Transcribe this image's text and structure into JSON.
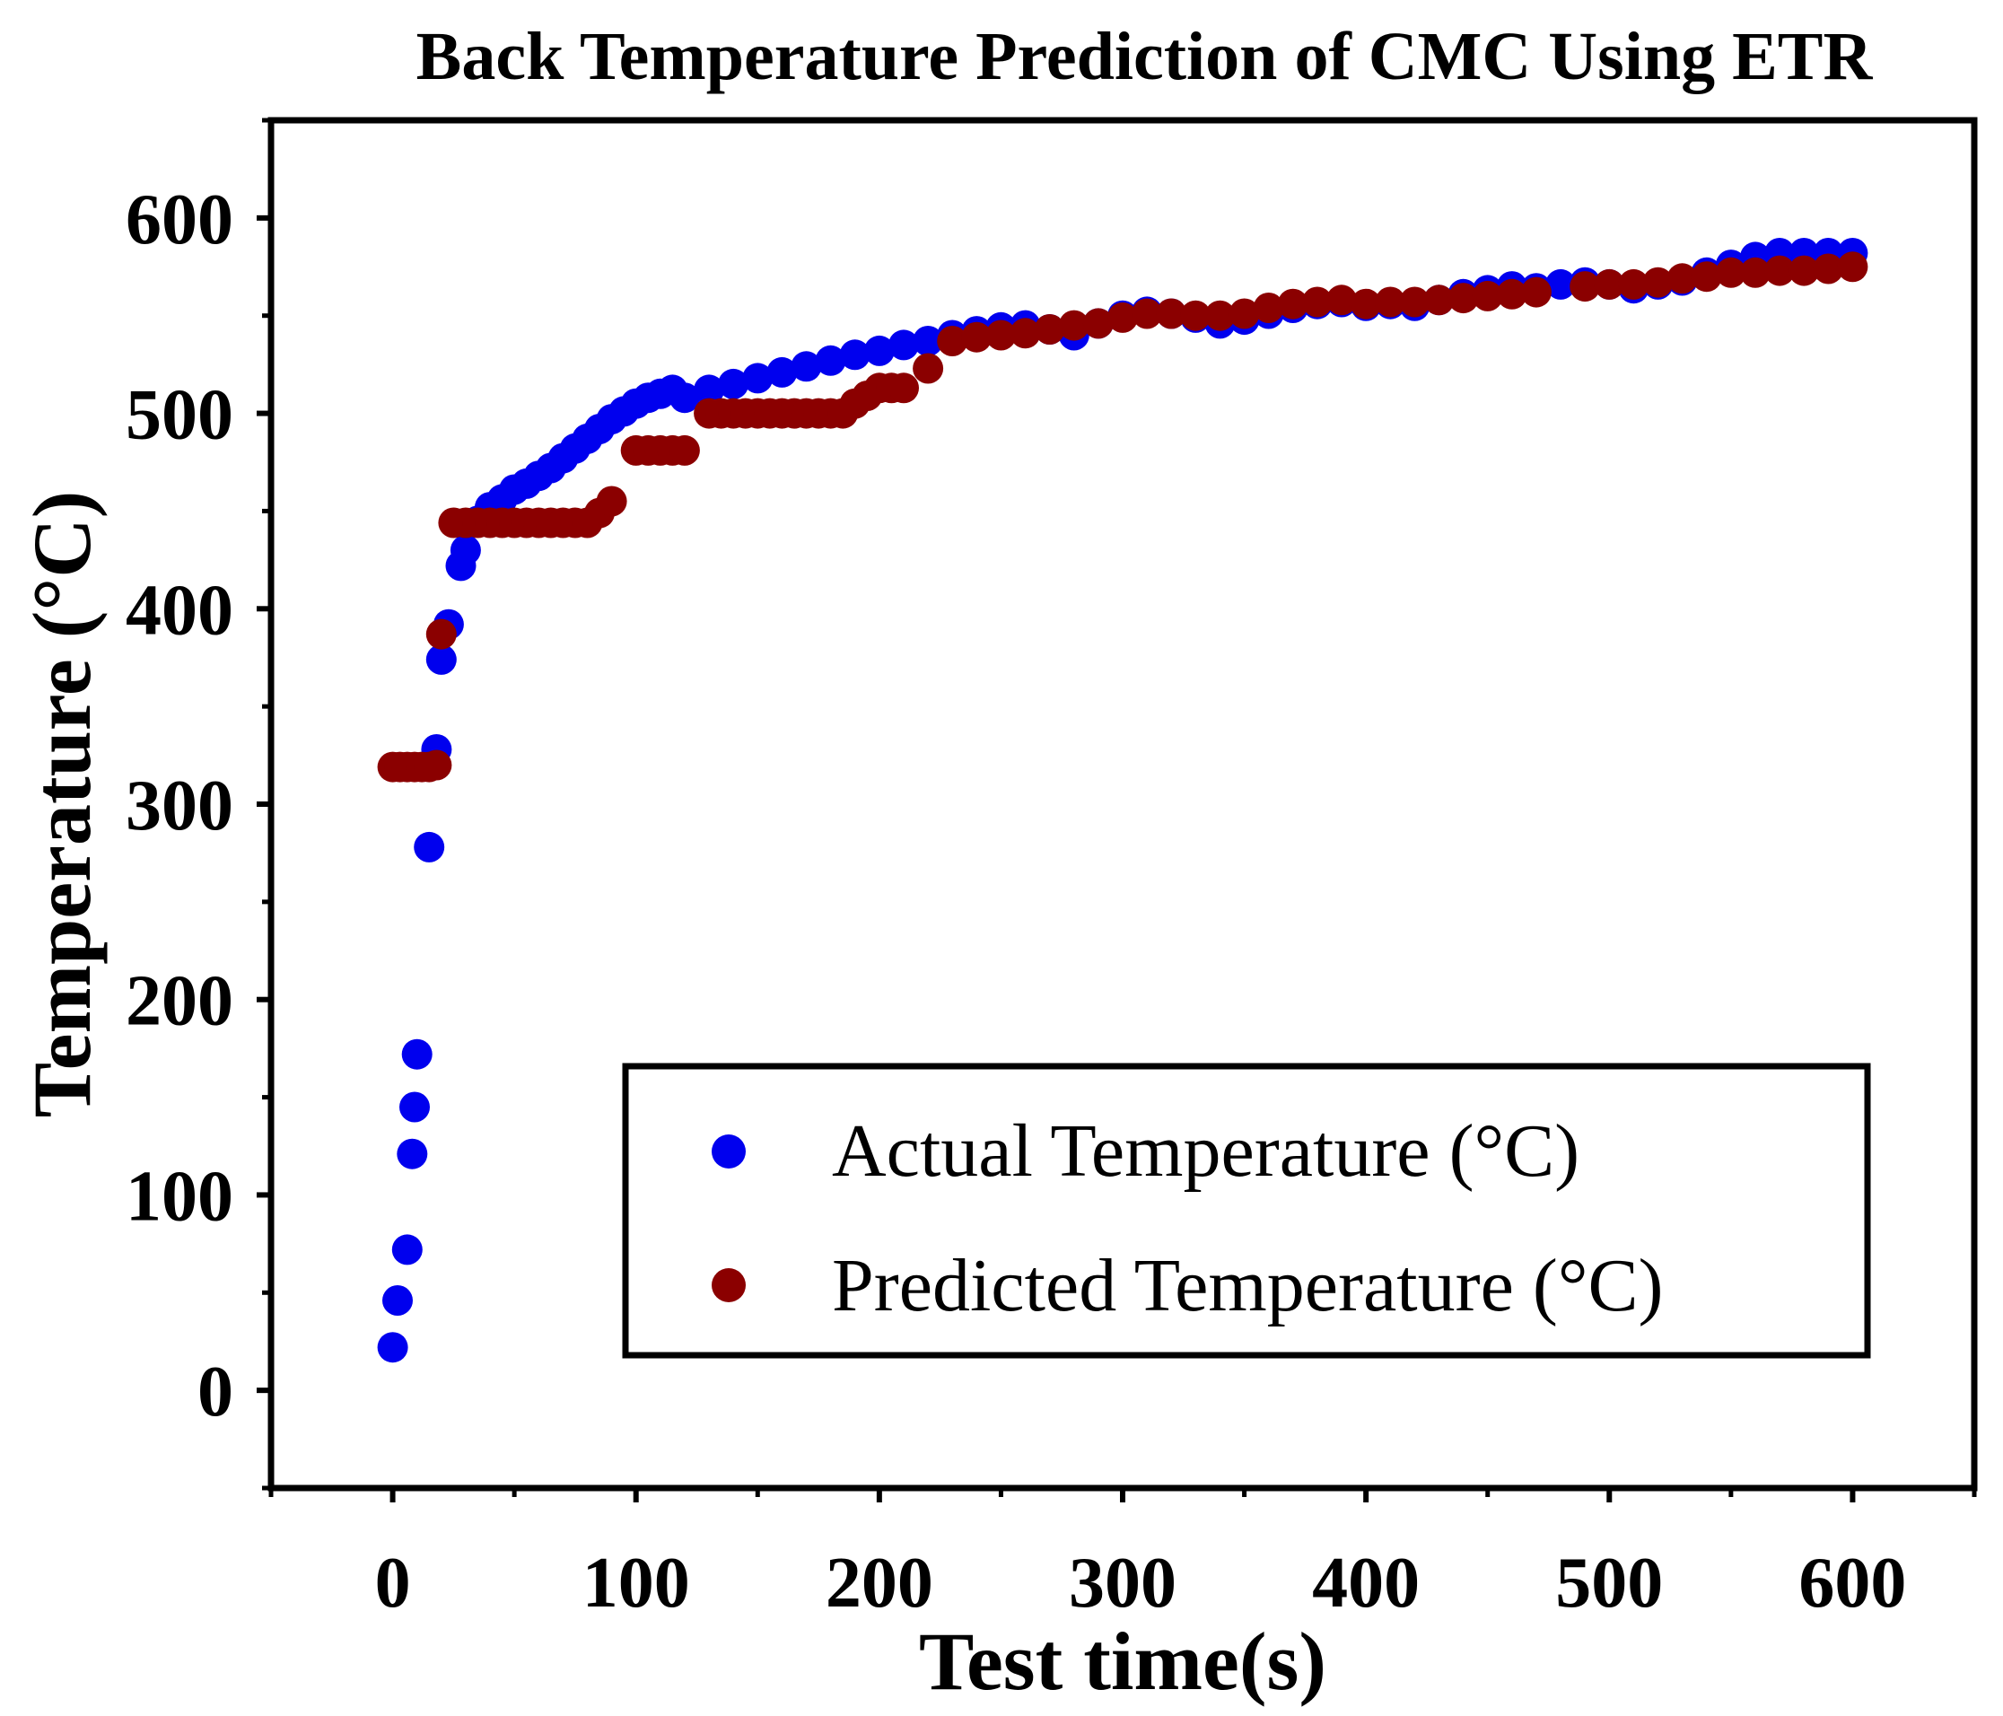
{
  "chart_data": {
    "type": "scatter",
    "title": "Back Temperature Prediction of CMC Using ETR",
    "xlabel": "Test time(s)",
    "ylabel": "Temperature (°C)",
    "xlim": [
      -50,
      650
    ],
    "ylim": [
      -50,
      650
    ],
    "xticks": [
      0,
      100,
      200,
      300,
      400,
      500,
      600
    ],
    "yticks": [
      0,
      100,
      200,
      300,
      400,
      500,
      600
    ],
    "xtick_labels": [
      "0",
      "100",
      "200",
      "300",
      "400",
      "500",
      "600"
    ],
    "ytick_labels": [
      "0",
      "100",
      "200",
      "300",
      "400",
      "500",
      "600"
    ],
    "legend_position": "bottom-right",
    "colors": {
      "actual": "#0000ee",
      "predicted": "#8b0000",
      "axis": "#000000"
    },
    "series": [
      {
        "name": "Actual Temperature (°C)",
        "color": "#0000ee",
        "x": [
          0,
          2,
          6,
          8,
          9,
          10,
          15,
          18,
          20,
          23,
          28,
          30,
          35,
          40,
          45,
          50,
          55,
          60,
          65,
          70,
          75,
          80,
          85,
          90,
          95,
          100,
          105,
          110,
          115,
          120,
          130,
          140,
          150,
          160,
          170,
          180,
          190,
          200,
          210,
          220,
          230,
          240,
          250,
          260,
          270,
          280,
          290,
          300,
          310,
          320,
          330,
          340,
          350,
          360,
          370,
          380,
          390,
          400,
          410,
          420,
          430,
          440,
          450,
          460,
          470,
          480,
          490,
          500,
          510,
          520,
          530,
          540,
          550,
          560,
          570,
          580,
          590,
          600
        ],
        "y": [
          22,
          46,
          72,
          121,
          145,
          172,
          278,
          328,
          374,
          392,
          422,
          430,
          445,
          452,
          456,
          461,
          464,
          468,
          472,
          477,
          482,
          487,
          492,
          497,
          501,
          505,
          508,
          510,
          512,
          508,
          512,
          515,
          518,
          521,
          524,
          527,
          530,
          532,
          535,
          537,
          540,
          542,
          544,
          545,
          543,
          540,
          546,
          550,
          552,
          551,
          549,
          546,
          548,
          551,
          554,
          556,
          557,
          555,
          556,
          555,
          558,
          561,
          563,
          565,
          564,
          566,
          567,
          566,
          564,
          566,
          568,
          572,
          576,
          580,
          582,
          582,
          582,
          582
        ]
      },
      {
        "name": "Predicted Temperature (°C)",
        "color": "#8b0000",
        "x": [
          0,
          3,
          6,
          9,
          12,
          15,
          18,
          20,
          25,
          30,
          35,
          40,
          45,
          50,
          55,
          60,
          65,
          70,
          75,
          80,
          85,
          90,
          100,
          105,
          110,
          115,
          120,
          130,
          135,
          140,
          145,
          150,
          155,
          160,
          165,
          170,
          175,
          180,
          185,
          190,
          195,
          200,
          205,
          210,
          220,
          230,
          240,
          250,
          260,
          270,
          280,
          290,
          300,
          310,
          320,
          330,
          340,
          350,
          360,
          370,
          380,
          390,
          400,
          410,
          420,
          430,
          440,
          450,
          460,
          470,
          490,
          500,
          510,
          520,
          530,
          540,
          550,
          560,
          570,
          580,
          590,
          600
        ],
        "y": [
          319,
          319,
          319,
          319,
          319,
          319,
          320,
          387,
          444,
          444,
          444,
          444,
          444,
          444,
          444,
          444,
          444,
          444,
          444,
          444,
          449,
          455,
          481,
          481,
          481,
          481,
          481,
          500,
          500,
          500,
          500,
          500,
          500,
          500,
          500,
          500,
          500,
          500,
          500,
          505,
          509,
          513,
          513,
          513,
          523,
          537,
          539,
          540,
          541,
          543,
          545,
          546,
          549,
          551,
          551,
          550,
          550,
          551,
          554,
          556,
          557,
          558,
          556,
          557,
          557,
          558,
          559,
          560,
          561,
          562,
          565,
          566,
          566,
          567,
          569,
          570,
          572,
          572,
          573,
          573,
          574,
          575
        ]
      }
    ]
  }
}
